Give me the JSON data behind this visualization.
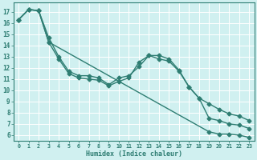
{
  "xlabel": "Humidex (Indice chaleur)",
  "bg_color": "#d0f0f0",
  "line_color": "#2e7d72",
  "grid_color": "#ffffff",
  "xlim": [
    -0.5,
    23.5
  ],
  "ylim": [
    5.5,
    17.8
  ],
  "yticks": [
    6,
    7,
    8,
    9,
    10,
    11,
    12,
    13,
    14,
    15,
    16,
    17
  ],
  "xtick_labels": [
    "0",
    "1",
    "2",
    "3",
    "4",
    "5",
    "6",
    "7",
    "8",
    "9",
    "10",
    "11",
    "12",
    "13",
    "14",
    "15",
    "16",
    "17",
    "18",
    "19",
    "20",
    "21",
    "22",
    "23"
  ],
  "curve1_x": [
    0,
    1,
    2,
    3,
    4,
    5,
    6,
    7,
    8,
    9,
    10,
    11,
    12,
    13,
    14,
    15,
    16,
    17,
    18,
    19,
    20,
    21,
    22,
    23
  ],
  "curve1_y": [
    16.3,
    17.2,
    17.1,
    14.7,
    13.0,
    11.7,
    11.3,
    11.3,
    11.1,
    10.5,
    11.1,
    11.3,
    12.1,
    13.1,
    13.1,
    12.8,
    11.8,
    10.3,
    9.3,
    8.8,
    8.3,
    7.9,
    7.7,
    7.3
  ],
  "curve2_x": [
    0,
    1,
    2,
    3,
    4,
    5,
    6,
    7,
    8,
    9,
    10,
    11,
    12,
    13,
    14,
    15,
    16,
    17,
    18,
    19,
    20,
    21,
    22,
    23
  ],
  "curve2_y": [
    16.3,
    17.2,
    17.1,
    14.3,
    12.8,
    11.5,
    11.1,
    11.0,
    10.9,
    10.4,
    10.8,
    11.1,
    12.5,
    13.1,
    12.8,
    12.6,
    11.7,
    10.3,
    9.3,
    7.5,
    7.3,
    7.0,
    6.9,
    6.6
  ],
  "curve3_x": [
    0,
    1,
    2,
    3,
    19,
    20,
    21,
    22,
    23
  ],
  "curve3_y": [
    16.3,
    17.2,
    17.1,
    14.3,
    6.3,
    6.1,
    6.1,
    6.0,
    5.8
  ],
  "marker_size": 2.5,
  "line_width": 1.0
}
